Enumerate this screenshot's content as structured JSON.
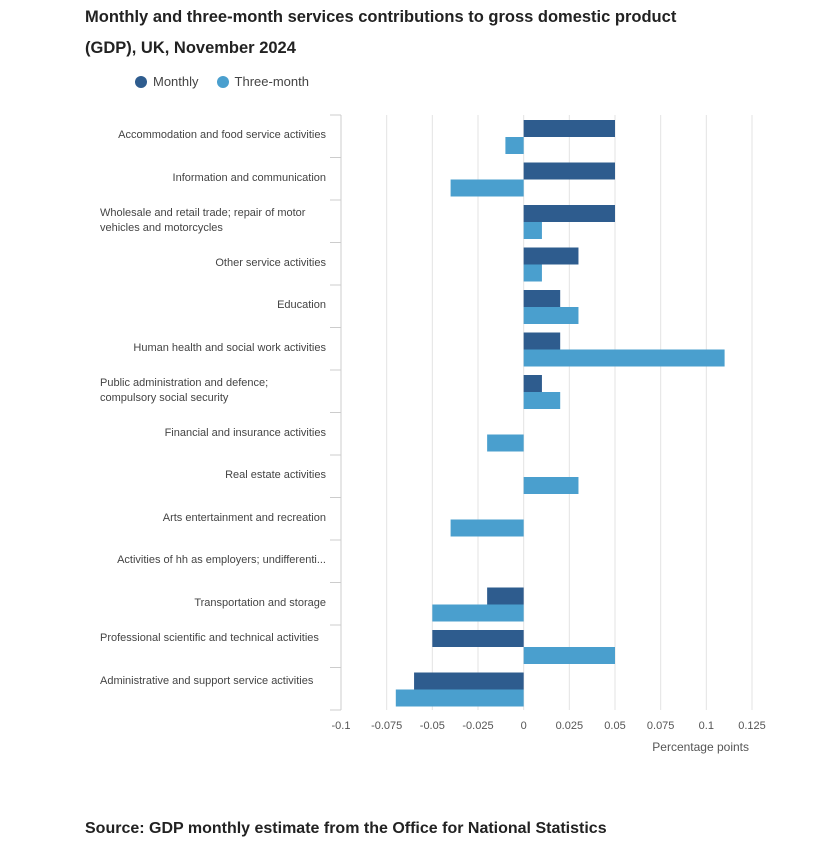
{
  "chart_data": {
    "type": "bar",
    "orientation": "horizontal",
    "title": "Monthly and three-month services contributions to gross domestic product (GDP), UK, November 2024",
    "xlabel": "Percentage points",
    "ylabel": "",
    "xlim": [
      -0.1,
      0.125
    ],
    "ticks": [
      -0.1,
      -0.075,
      -0.05,
      -0.025,
      0,
      0.025,
      0.05,
      0.075,
      0.1,
      0.125
    ],
    "tick_labels": [
      "-0.1",
      "-0.075",
      "-0.05",
      "-0.025",
      "0",
      "0.025",
      "0.05",
      "0.075",
      "0.1",
      "0.125"
    ],
    "legend_position": "top-left",
    "grid": true,
    "categories": [
      "Accommodation and food service activities",
      "Information and communication",
      "Wholesale and retail trade; repair of motor vehicles and motorcycles",
      "Other service activities",
      "Education",
      "Human health and social work activities",
      "Public administration and defence; compulsory social security",
      "Financial and insurance activities",
      "Real estate activities",
      "Arts entertainment and recreation",
      "Activities of hh as employers; undifferenti...",
      "Transportation and storage",
      "Professional scientific and technical activities",
      "Administrative and support service activities"
    ],
    "series": [
      {
        "name": "Monthly",
        "color": "#2e5c8e",
        "values": [
          0.05,
          0.05,
          0.05,
          0.03,
          0.02,
          0.02,
          0.01,
          0,
          0,
          0,
          0,
          -0.02,
          -0.05,
          -0.06
        ]
      },
      {
        "name": "Three-month",
        "color": "#4a9fce",
        "values": [
          -0.01,
          -0.04,
          0.01,
          0.01,
          0.03,
          0.11,
          0.02,
          -0.02,
          0.03,
          -0.04,
          0,
          -0.05,
          0.05,
          -0.07
        ]
      }
    ]
  },
  "legend": {
    "monthly_label": "Monthly",
    "three_month_label": "Three-month"
  },
  "source": "Source: GDP monthly estimate from the Office for National Statistics"
}
